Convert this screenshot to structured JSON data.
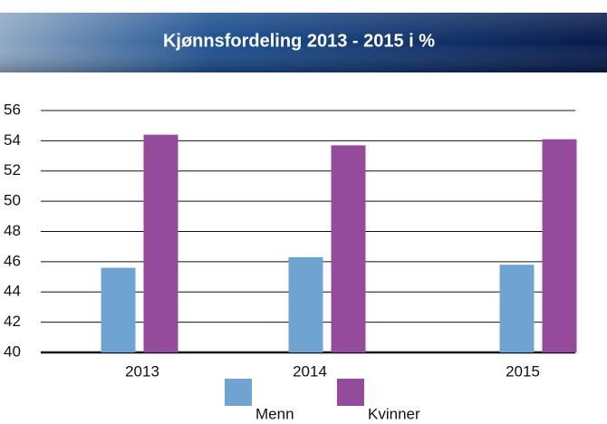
{
  "chart_data": {
    "type": "bar",
    "title": "Kjønnsfordeling 2013 - 2015 i %",
    "categories": [
      "2013",
      "2014",
      "2015"
    ],
    "series": [
      {
        "name": "Menn",
        "color": "#6fa3d2",
        "values": [
          45.6,
          46.3,
          45.8
        ]
      },
      {
        "name": "Kvinner",
        "color": "#944b9b",
        "values": [
          54.4,
          53.7,
          54.1
        ]
      }
    ],
    "ylim": [
      40,
      56
    ],
    "yticks": [
      40,
      42,
      44,
      46,
      48,
      50,
      52,
      54,
      56
    ],
    "grid": true,
    "legend": "bottom"
  }
}
